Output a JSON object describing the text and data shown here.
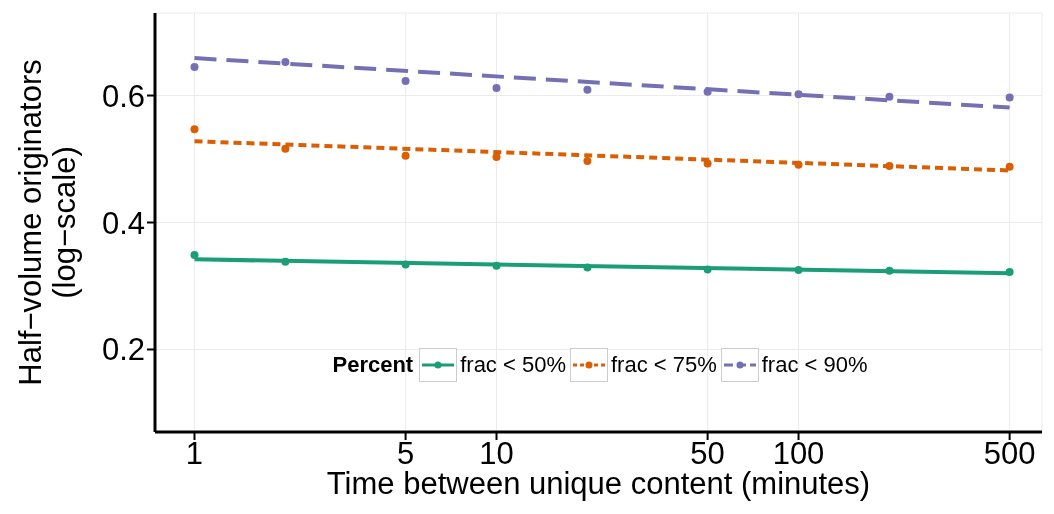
{
  "chart_data": {
    "type": "scatter",
    "xlabel": "Time between unique content (minutes)",
    "ylabel": "Half−volume originators\n(log−scale)",
    "legend_title": "Percent",
    "log": "x",
    "grid": true,
    "legend": "bottom",
    "xlim": [
      0.74,
      640
    ],
    "xticks": [
      1,
      5,
      10,
      50,
      100,
      500
    ],
    "ylim": [
      0.07,
      0.73
    ],
    "yticks": [
      0.2,
      0.4,
      0.6
    ],
    "series": [
      {
        "marker": "circle",
        "color": "#1b9e77",
        "x": [
          1,
          2,
          5,
          10,
          20,
          50,
          100,
          200,
          500
        ],
        "values": [
          0.349,
          0.338,
          0.334,
          0.332,
          0.329,
          0.326,
          0.325,
          0.324,
          0.322
        ]
      },
      {
        "marker": "circle",
        "color": "#d95f02",
        "x": [
          1,
          2,
          5,
          10,
          20,
          50,
          100,
          200,
          500
        ],
        "values": [
          0.547,
          0.516,
          0.505,
          0.503,
          0.497,
          0.493,
          0.491,
          0.489,
          0.488
        ]
      },
      {
        "marker": "circle",
        "color": "#7570b3",
        "x": [
          1,
          2,
          5,
          10,
          20,
          50,
          100,
          200,
          500
        ],
        "values": [
          0.645,
          0.653,
          0.623,
          0.612,
          0.609,
          0.606,
          0.602,
          0.598,
          0.597
        ]
      },
      {
        "type": "line",
        "name": "frac < 50%",
        "line_style": "solid",
        "color": "#1b9e77",
        "x": [
          1,
          500
        ],
        "values": [
          0.342,
          0.32
        ]
      },
      {
        "type": "line",
        "name": "frac < 75%",
        "line_style": "dotted",
        "color": "#d95f02",
        "x": [
          1,
          500
        ],
        "values": [
          0.528,
          0.482
        ]
      },
      {
        "type": "line",
        "name": "frac < 90%",
        "line_style": "dashed",
        "color": "#7570b3",
        "x": [
          1,
          500
        ],
        "values": [
          0.659,
          0.581
        ]
      }
    ]
  }
}
